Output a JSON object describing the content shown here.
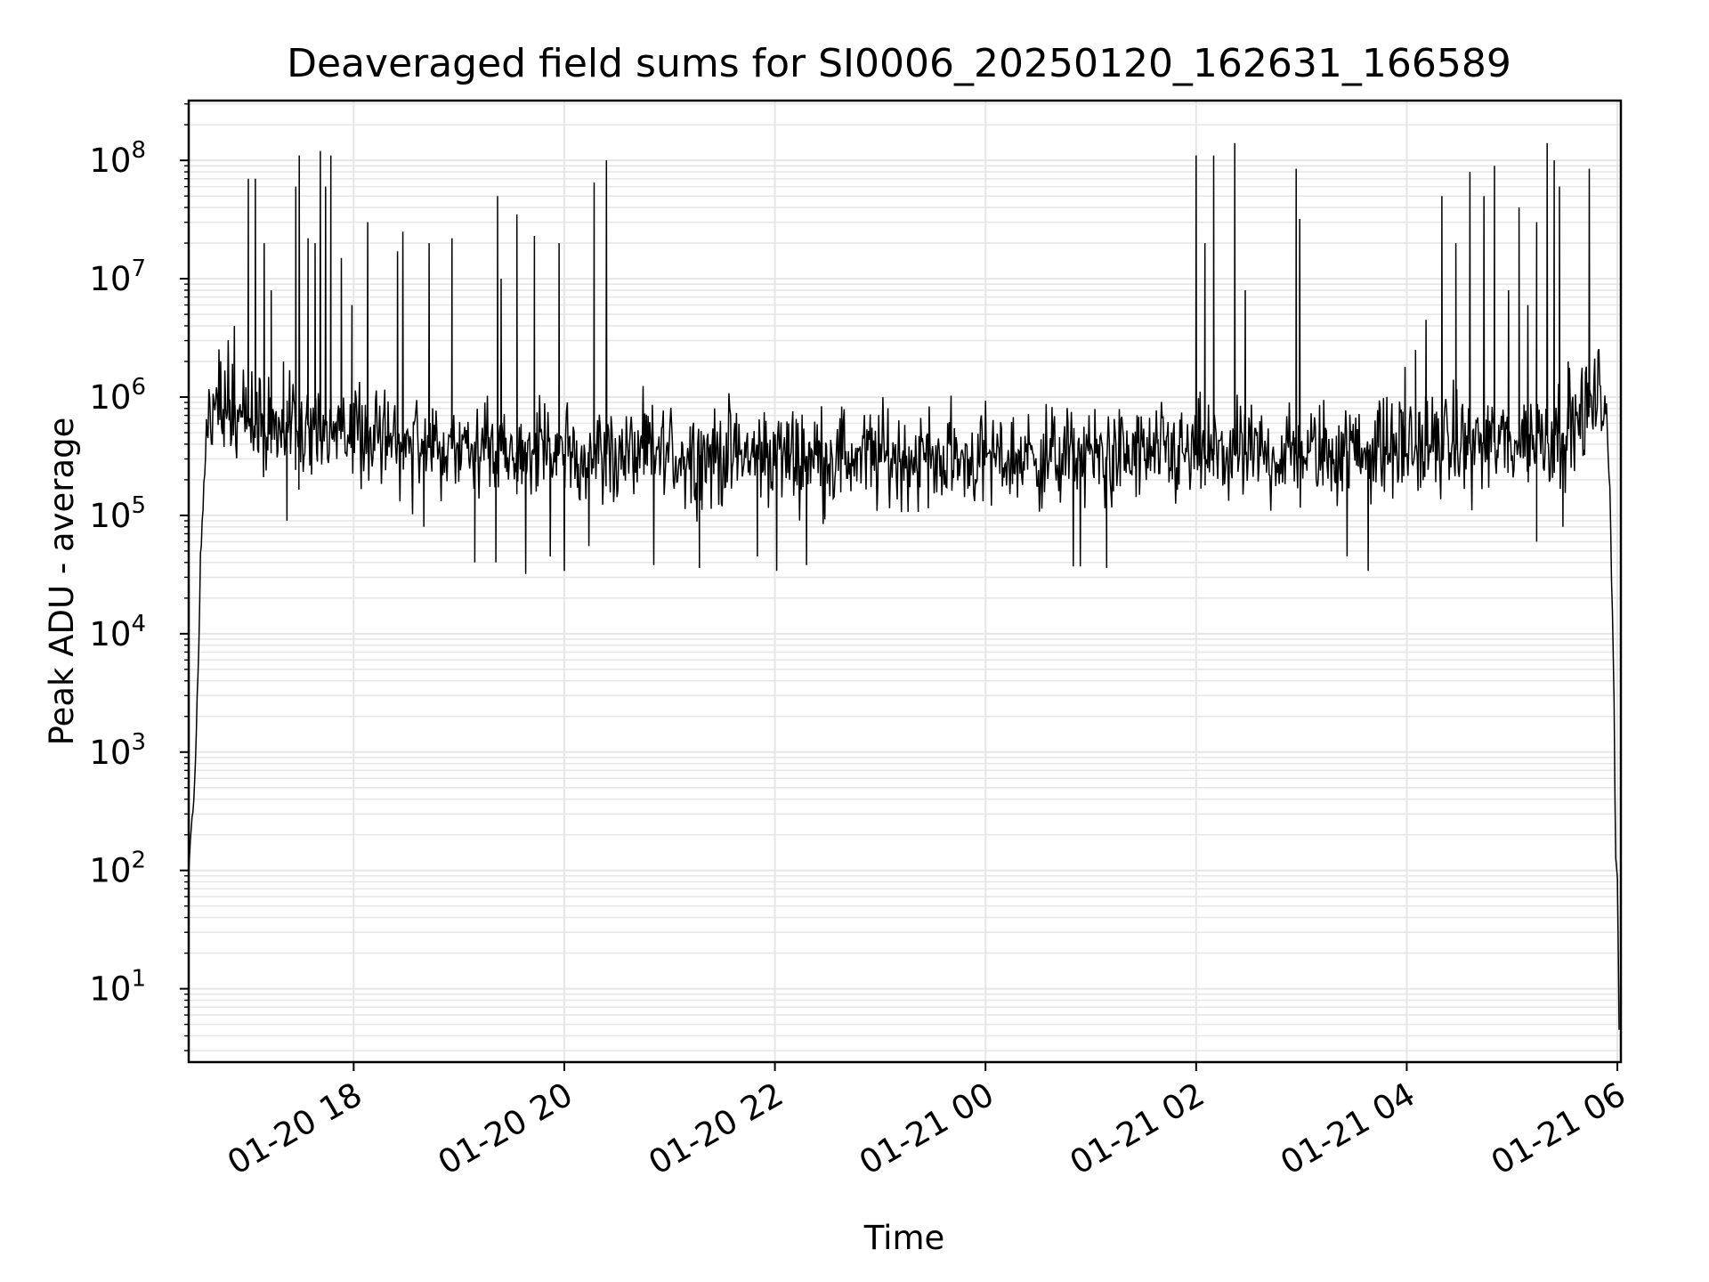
{
  "chart_data": {
    "type": "line",
    "title": "Deaveraged field sums for SI0006_20250120_162631_166589",
    "xlabel": "Time",
    "ylabel": "Peak ADU - average",
    "yscale": "log",
    "ylim": [
      2.4,
      320000000
    ],
    "xlim": [
      "2025-01-20 16:26",
      "2025-01-21 06:02"
    ],
    "grid": true,
    "x_tick_labels": [
      "01-20 18",
      "01-20 20",
      "01-20 22",
      "01-21 00",
      "01-21 02",
      "01-21 04",
      "01-21 06"
    ],
    "x_tick_times": [
      "2025-01-20 18:00",
      "2025-01-20 20:00",
      "2025-01-20 22:00",
      "2025-01-21 00:00",
      "2025-01-21 02:00",
      "2025-01-21 04:00",
      "2025-01-21 06:00"
    ],
    "y_tick_labels": [
      {
        "base": "10",
        "exp": "1"
      },
      {
        "base": "10",
        "exp": "2"
      },
      {
        "base": "10",
        "exp": "3"
      },
      {
        "base": "10",
        "exp": "4"
      },
      {
        "base": "10",
        "exp": "5"
      },
      {
        "base": "10",
        "exp": "6"
      },
      {
        "base": "10",
        "exp": "7"
      },
      {
        "base": "10",
        "exp": "8"
      }
    ],
    "line_color": "#000000",
    "grid_color": "#e6e6e6",
    "envelope": [
      [
        "2025-01-20 16:26",
        100
      ],
      [
        "2025-01-20 16:29",
        500
      ],
      [
        "2025-01-20 16:31",
        3000
      ],
      [
        "2025-01-20 16:33",
        60000
      ],
      [
        "2025-01-20 16:36",
        400000
      ],
      [
        "2025-01-20 16:42",
        1000000
      ],
      [
        "2025-01-20 17:10",
        500000
      ],
      [
        "2025-01-20 17:40",
        600000
      ],
      [
        "2025-01-20 18:30",
        380000
      ],
      [
        "2025-01-20 20:00",
        330000
      ],
      [
        "2025-01-20 22:00",
        320000
      ],
      [
        "2025-01-21 00:00",
        300000
      ],
      [
        "2025-01-21 01:40",
        320000
      ],
      [
        "2025-01-21 03:00",
        330000
      ],
      [
        "2025-01-21 04:00",
        380000
      ],
      [
        "2025-01-21 05:00",
        420000
      ],
      [
        "2025-01-21 05:30",
        500000
      ],
      [
        "2025-01-21 05:50",
        1000000
      ],
      [
        "2025-01-21 05:54",
        800000
      ],
      [
        "2025-01-21 05:56",
        120000
      ],
      [
        "2025-01-21 05:58",
        3000
      ],
      [
        "2025-01-21 05:59",
        150
      ],
      [
        "2025-01-21 06:00",
        100
      ],
      [
        "2025-01-21 06:01",
        5
      ]
    ],
    "spikes": [
      [
        "2025-01-20 16:52",
        4000000
      ],
      [
        "2025-01-20 17:00",
        70000000
      ],
      [
        "2025-01-20 17:04",
        70000000
      ],
      [
        "2025-01-20 17:09",
        20000000
      ],
      [
        "2025-01-20 17:13",
        8000000
      ],
      [
        "2025-01-20 17:20",
        2000000
      ],
      [
        "2025-01-20 17:27",
        60000000
      ],
      [
        "2025-01-20 17:29",
        110000000
      ],
      [
        "2025-01-20 17:34",
        22000000
      ],
      [
        "2025-01-20 17:38",
        20000000
      ],
      [
        "2025-01-20 17:41",
        120000000
      ],
      [
        "2025-01-20 17:44",
        60000000
      ],
      [
        "2025-01-20 17:47",
        110000000
      ],
      [
        "2025-01-20 17:53",
        15000000
      ],
      [
        "2025-01-20 17:59",
        6000000
      ],
      [
        "2025-01-20 18:08",
        30000000
      ],
      [
        "2025-01-20 18:25",
        17000000
      ],
      [
        "2025-01-20 18:28",
        25000000
      ],
      [
        "2025-01-20 18:43",
        20000000
      ],
      [
        "2025-01-20 18:56",
        22000000
      ],
      [
        "2025-01-20 19:22",
        50000000
      ],
      [
        "2025-01-20 19:24",
        10000000
      ],
      [
        "2025-01-20 19:33",
        35000000
      ],
      [
        "2025-01-20 19:43",
        23000000
      ],
      [
        "2025-01-20 19:57",
        20000000
      ],
      [
        "2025-01-20 20:17",
        65000000
      ],
      [
        "2025-01-20 20:24",
        100000000
      ],
      [
        "2025-01-21 02:00",
        110000000
      ],
      [
        "2025-01-21 02:05",
        20000000
      ],
      [
        "2025-01-21 02:10",
        110000000
      ],
      [
        "2025-01-21 02:22",
        140000000
      ],
      [
        "2025-01-21 02:28",
        8000000
      ],
      [
        "2025-01-21 02:57",
        85000000
      ],
      [
        "2025-01-21 02:59",
        32000000
      ],
      [
        "2025-01-21 03:59",
        1800000
      ],
      [
        "2025-01-21 04:05",
        2500000
      ],
      [
        "2025-01-21 04:11",
        4500000
      ],
      [
        "2025-01-21 04:20",
        50000000
      ],
      [
        "2025-01-21 04:28",
        20000000
      ],
      [
        "2025-01-21 04:36",
        80000000
      ],
      [
        "2025-01-21 04:44",
        50000000
      ],
      [
        "2025-01-21 04:50",
        90000000
      ],
      [
        "2025-01-21 04:58",
        8000000
      ],
      [
        "2025-01-21 05:04",
        40000000
      ],
      [
        "2025-01-21 05:09",
        6000000
      ],
      [
        "2025-01-21 05:14",
        30000000
      ],
      [
        "2025-01-21 05:20",
        140000000
      ],
      [
        "2025-01-21 05:24",
        100000000
      ],
      [
        "2025-01-21 05:27",
        60000000
      ],
      [
        "2025-01-21 05:32",
        2000000
      ],
      [
        "2025-01-21 05:44",
        85000000
      ]
    ],
    "dips": [
      [
        "2025-01-20 17:22",
        90000
      ],
      [
        "2025-01-20 18:40",
        80000
      ],
      [
        "2025-01-20 19:09",
        40000
      ],
      [
        "2025-01-20 19:21",
        40000
      ],
      [
        "2025-01-20 19:38",
        32000
      ],
      [
        "2025-01-20 19:52",
        45000
      ],
      [
        "2025-01-20 20:00",
        34000
      ],
      [
        "2025-01-20 20:14",
        55000
      ],
      [
        "2025-01-20 20:51",
        38000
      ],
      [
        "2025-01-20 21:17",
        36000
      ],
      [
        "2025-01-20 21:50",
        45000
      ],
      [
        "2025-01-20 22:01",
        34000
      ],
      [
        "2025-01-20 22:18",
        38000
      ],
      [
        "2025-01-21 00:50",
        37000
      ],
      [
        "2025-01-21 00:54",
        37000
      ],
      [
        "2025-01-21 01:09",
        36000
      ],
      [
        "2025-01-21 03:26",
        45000
      ],
      [
        "2025-01-21 03:38",
        34000
      ],
      [
        "2025-01-21 05:14",
        60000
      ],
      [
        "2025-01-21 05:29",
        80000
      ]
    ]
  }
}
